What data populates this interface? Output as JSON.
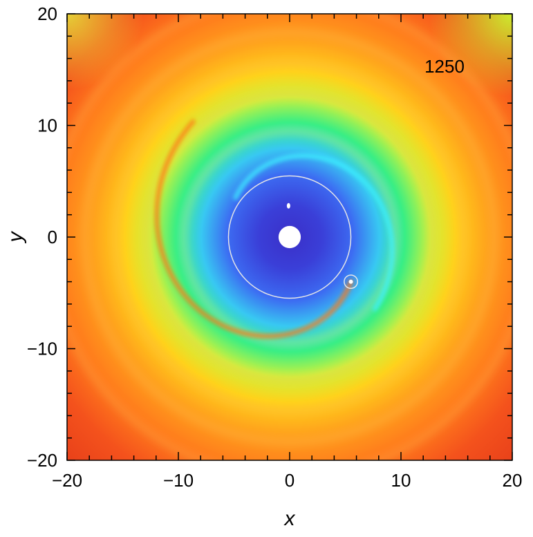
{
  "chart_data": {
    "type": "heatmap",
    "title": "",
    "xlabel": "x",
    "ylabel": "y",
    "xlim": [
      -20,
      20
    ],
    "ylim": [
      -20,
      20
    ],
    "x_ticks": [
      -20,
      -10,
      0,
      10,
      20
    ],
    "y_ticks": [
      -20,
      -10,
      0,
      10,
      20
    ],
    "x_tick_labels": [
      "−20",
      "−10",
      "0",
      "10",
      "20"
    ],
    "y_tick_labels": [
      "−20",
      "−10",
      "0",
      "10",
      "20"
    ],
    "annotation": "1250",
    "grid": false,
    "legend": "none",
    "colormap": [
      "#2a2ad0",
      "#3f6cf0",
      "#36d0f0",
      "#2ef07a",
      "#d8f23a",
      "#ffd21a",
      "#ff9a1a",
      "#f0401a"
    ],
    "central_object": {
      "x": 0,
      "y": 0,
      "radius": 1.0,
      "color": "#ffffff"
    },
    "orbit": {
      "center": [
        0,
        0
      ],
      "radius": 5.5,
      "color": "#e6e6e6"
    },
    "planet": {
      "x": 5.5,
      "y": -4.0,
      "hill_radius": 0.6
    },
    "satellite": {
      "x": -0.1,
      "y": 2.8
    },
    "spiral_arms": [
      {
        "name": "",
        "start_angle_deg": -36,
        "end_angle_deg": -230,
        "r_start": 6.8,
        "r_end": 13.5,
        "color": "#ff7a10"
      },
      {
        "name": "",
        "start_angle_deg": 144,
        "end_angle_deg": -40,
        "r_start": 6.0,
        "r_end": 10.0,
        "color": "#3ff0ff"
      }
    ]
  }
}
